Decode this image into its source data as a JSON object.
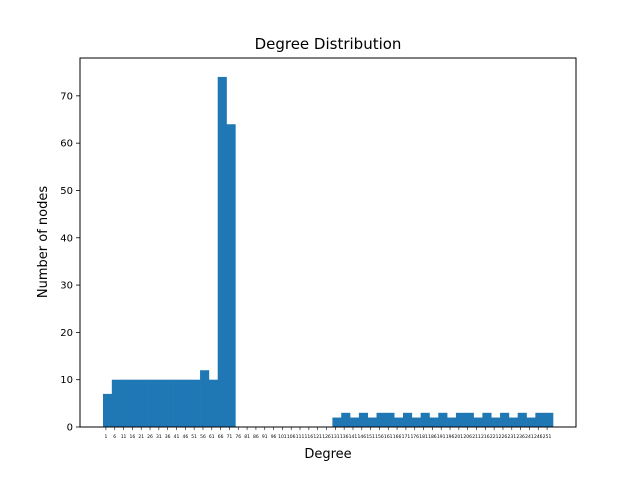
{
  "chart_data": {
    "type": "bar",
    "title": "Degree Distribution",
    "xlabel": "Degree",
    "ylabel": "Number of nodes",
    "ylim": [
      0,
      78
    ],
    "yticks": [
      0,
      10,
      20,
      30,
      40,
      50,
      60,
      70
    ],
    "bin_width": 5,
    "categories": [
      "1",
      "6",
      "11",
      "16",
      "21",
      "26",
      "31",
      "36",
      "41",
      "46",
      "51",
      "56",
      "61",
      "66",
      "71",
      "76",
      "81",
      "86",
      "91",
      "96",
      "101",
      "106",
      "111",
      "116",
      "121",
      "126",
      "131",
      "136",
      "141",
      "146",
      "151",
      "156",
      "161",
      "166",
      "171",
      "176",
      "181",
      "186",
      "191",
      "196",
      "201",
      "206",
      "211",
      "216",
      "221",
      "226",
      "231",
      "236",
      "241",
      "246",
      "251"
    ],
    "values": [
      7,
      10,
      10,
      10,
      10,
      10,
      10,
      10,
      10,
      10,
      10,
      12,
      10,
      74,
      64,
      0,
      0,
      0,
      0,
      0,
      0,
      0,
      0,
      0,
      0,
      0,
      2,
      3,
      2,
      3,
      2,
      3,
      3,
      2,
      3,
      2,
      3,
      2,
      3,
      2,
      3,
      3,
      2,
      3,
      2,
      3,
      2,
      3,
      2,
      3,
      3
    ],
    "bar_color": "#1f77b4",
    "grid": false,
    "legend": "none"
  }
}
